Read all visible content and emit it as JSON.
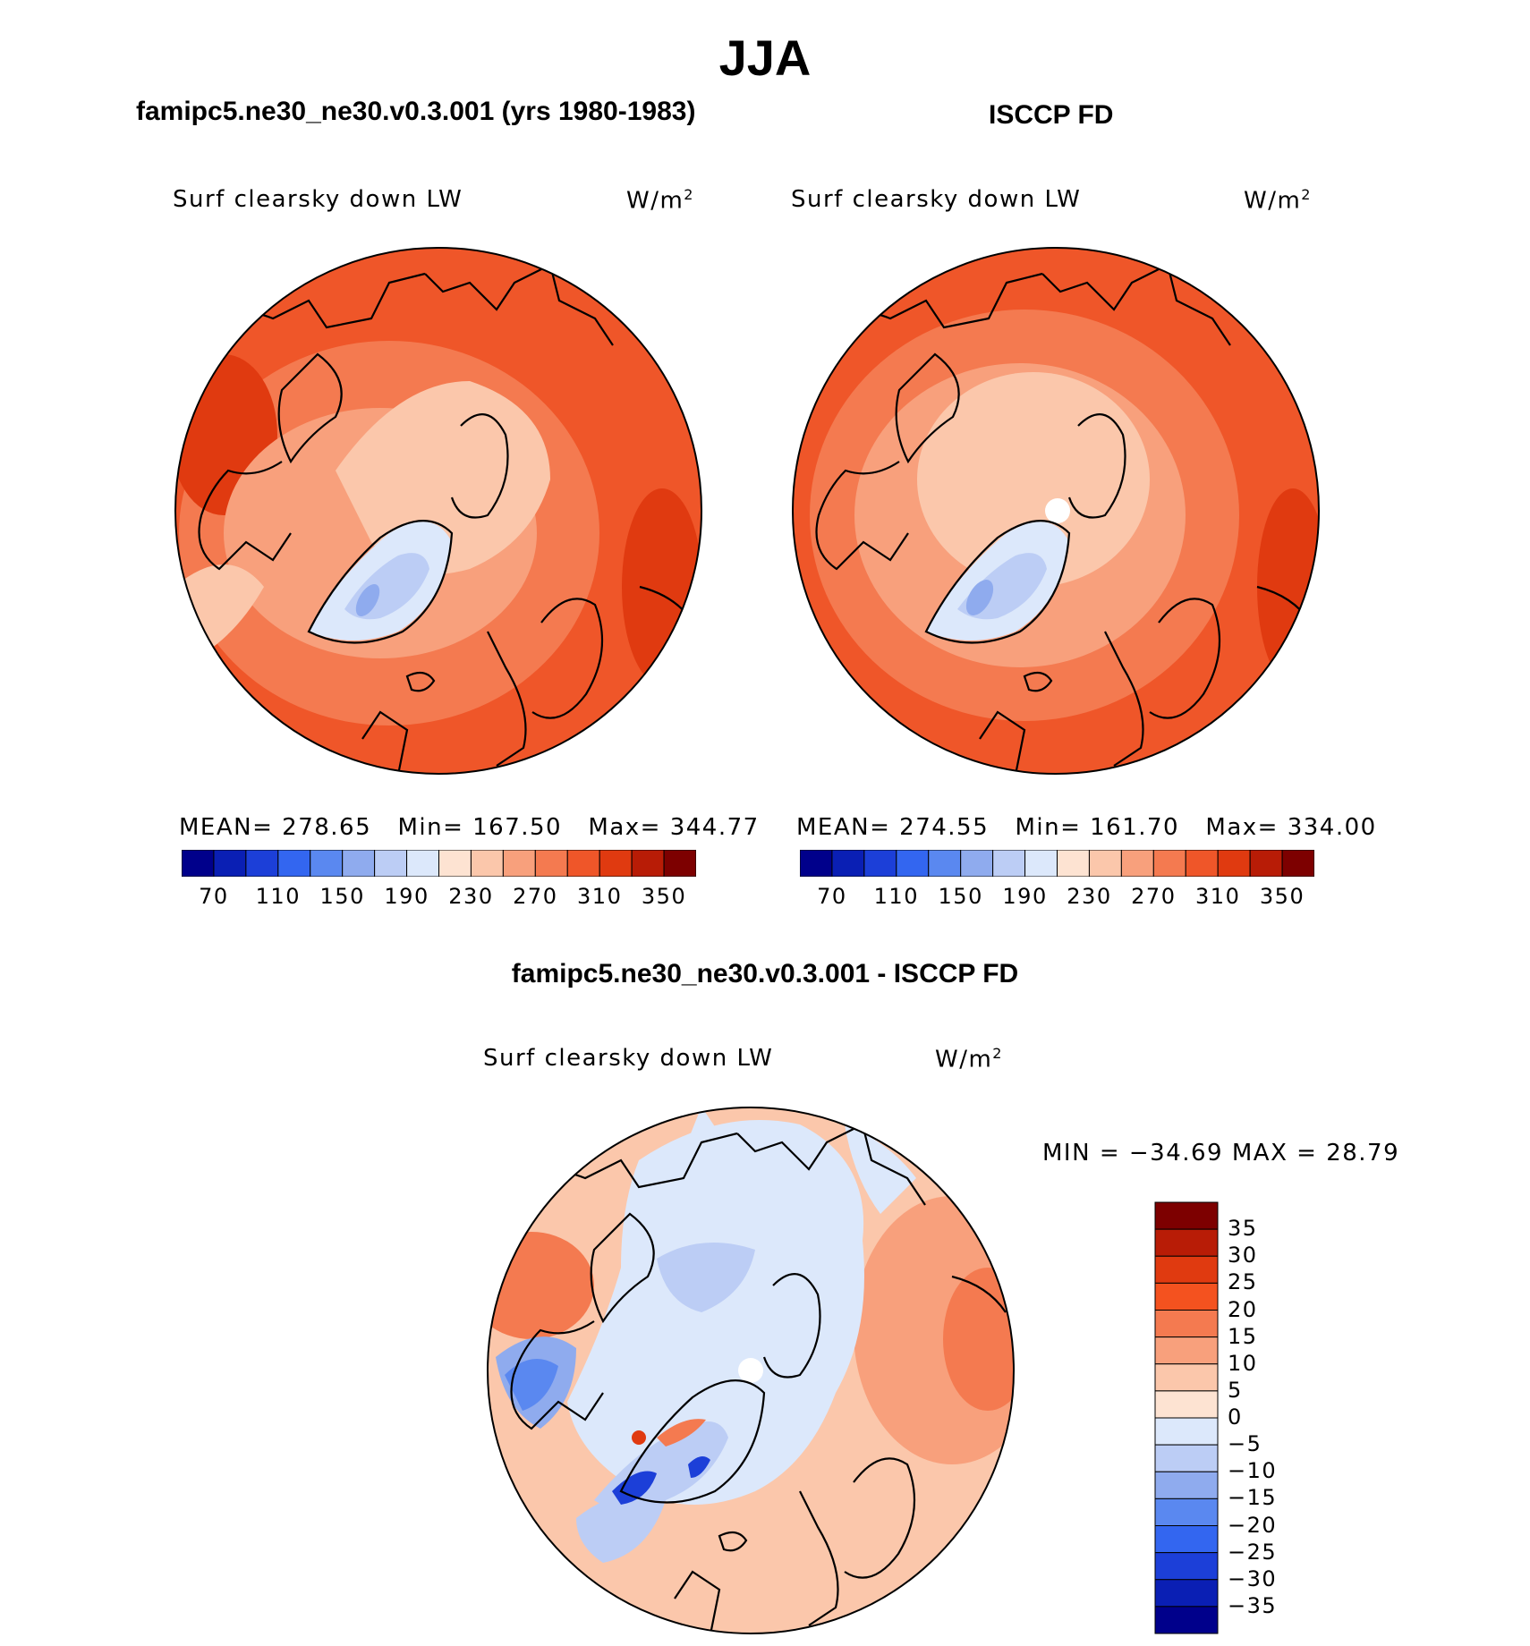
{
  "main_title": "JJA",
  "panels": [
    {
      "title": "famipc5.ne30_ne30.v0.3.001 (yrs 1980-1983)",
      "variable": "Surf clearsky down LW",
      "units": "W/m",
      "units_sup": "2",
      "stats": {
        "mean_label": "MEAN=",
        "mean": "278.65",
        "min_label": "Min=",
        "min": "167.50",
        "max_label": "Max=",
        "max": "344.77"
      }
    },
    {
      "title": "ISCCP FD",
      "variable": "Surf clearsky down LW",
      "units": "W/m",
      "units_sup": "2",
      "stats": {
        "mean_label": "MEAN=",
        "mean": "274.55",
        "min_label": "Min=",
        "min": "161.70",
        "max_label": "Max=",
        "max": "334.00"
      }
    }
  ],
  "difference_panel": {
    "title": "famipc5.ne30_ne30.v0.3.001 - ISCCP FD",
    "variable": "Surf clearsky down LW",
    "units": "W/m",
    "units_sup": "2",
    "minmax": "MIN = −34.69 MAX =   28.79"
  },
  "colorbar_abs": {
    "colors": [
      "#00008b",
      "#0a1fb4",
      "#1c3fd8",
      "#3366f0",
      "#5a88f0",
      "#8fabee",
      "#bccdf5",
      "#dce8fb",
      "#fde3d2",
      "#fbc7ab",
      "#f8a07c",
      "#f47a50",
      "#ef5629",
      "#e03a10",
      "#b81c06",
      "#7d0000"
    ],
    "labels": [
      "70",
      "110",
      "150",
      "190",
      "230",
      "270",
      "310",
      "350"
    ]
  },
  "colorbar_diff": {
    "colors": [
      "#7d0000",
      "#b81c06",
      "#e03a10",
      "#f4521f",
      "#f47a50",
      "#f8a07c",
      "#fbc7ab",
      "#fde3d2",
      "#dce8fb",
      "#bccdf5",
      "#8fabee",
      "#5a88f0",
      "#3366f0",
      "#1c3fd8",
      "#0a1fb4",
      "#00008b"
    ],
    "labels": [
      "35",
      "30",
      "25",
      "20",
      "15",
      "10",
      "5",
      "0",
      "−5",
      "−10",
      "−15",
      "−20",
      "−25",
      "−30",
      "−35"
    ]
  }
}
